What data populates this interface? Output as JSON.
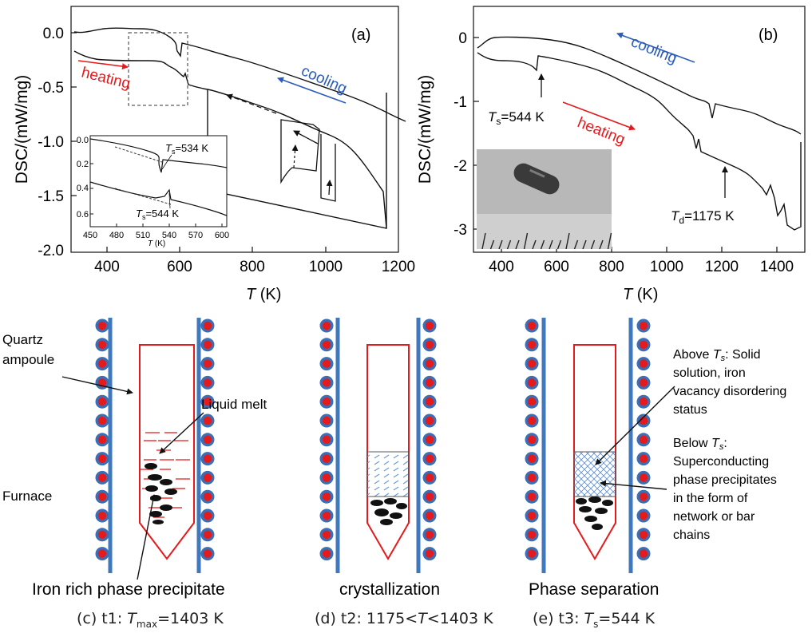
{
  "chart_data": [
    {
      "type": "line",
      "panel_label": "(a)",
      "xlabel": "T (K)",
      "ylabel": "DSC/(mW/mg)",
      "xlim": [
        300,
        1200
      ],
      "ylim": [
        -2.0,
        0.1
      ],
      "x_ticks": [
        "400",
        "600",
        "800",
        "1000",
        "1200"
      ],
      "y_ticks": [
        "0.0",
        "-0.5",
        "-1.0",
        "-1.5",
        "-2.0"
      ],
      "annotations": [
        "heating",
        "cooling"
      ],
      "series": [
        {
          "name": "cooling",
          "x": [
            310,
            330,
            360,
            400,
            450,
            490,
            520,
            530,
            545,
            560,
            600,
            700,
            800,
            900,
            1000,
            1080,
            1120
          ],
          "y": [
            -0.02,
            0.0,
            0.02,
            0.02,
            0.01,
            -0.03,
            -0.1,
            -0.32,
            -0.13,
            -0.15,
            -0.2,
            -0.4,
            -0.6,
            -0.8,
            -1.0,
            -1.14,
            -1.22
          ]
        },
        {
          "name": "heating",
          "x": [
            310,
            320,
            350,
            400,
            450,
            500,
            530,
            545,
            560,
            600,
            660,
            700,
            800,
            900,
            1000,
            1080,
            1110,
            1125
          ],
          "y": [
            -0.15,
            -0.26,
            -0.28,
            -0.3,
            -0.31,
            -0.38,
            -0.44,
            -0.38,
            -0.56,
            -0.62,
            -0.75,
            -0.82,
            -1.0,
            -1.18,
            -1.37,
            -1.53,
            -1.62,
            -1.8
          ]
        }
      ],
      "inset": {
        "xlabel": "T (K)",
        "xlim": [
          450,
          610
        ],
        "ylim": [
          -0.7,
          0.0
        ],
        "x_ticks": [
          "450",
          "480",
          "510",
          "540",
          "570",
          "600"
        ],
        "y_ticks": [
          "0.0",
          "0.2",
          "0.4",
          "0.6"
        ],
        "labels": {
          "ts_cool": "T_s=534 K",
          "ts_heat": "T_s=544 K"
        }
      }
    },
    {
      "type": "line",
      "panel_label": "(b)",
      "xlabel": "T (K)",
      "ylabel": "DSC/(mW/mg)",
      "xlim": [
        300,
        1500
      ],
      "ylim": [
        -3.1,
        0.3
      ],
      "x_ticks": [
        "400",
        "600",
        "800",
        "1000",
        "1200",
        "1400"
      ],
      "y_ticks": [
        "0",
        "-1",
        "-2",
        "-3"
      ],
      "annotations": [
        "cooling",
        "heating",
        "T_s=544 K",
        "T_d=1175 K"
      ],
      "series": [
        {
          "name": "cooling",
          "x": [
            320,
            360,
            400,
            500,
            600,
            700,
            800,
            900,
            940,
            950,
            1000,
            1100,
            1200,
            1300,
            1400,
            1460
          ],
          "y": [
            -0.1,
            0.0,
            0.0,
            -0.05,
            -0.15,
            -0.35,
            -0.6,
            -0.85,
            -0.95,
            -1.2,
            -1.05,
            -1.25,
            -1.5,
            -1.65,
            -1.75,
            -1.85
          ]
        },
        {
          "name": "heating",
          "x": [
            310,
            350,
            400,
            500,
            540,
            545,
            560,
            600,
            670,
            680,
            700,
            800,
            900,
            1000,
            1100,
            1170,
            1175,
            1180,
            1250,
            1300,
            1400,
            1440,
            1460,
            1475
          ],
          "y": [
            -0.35,
            -0.4,
            -0.42,
            -0.45,
            -0.42,
            -0.58,
            -0.65,
            -0.7,
            -0.82,
            -0.62,
            -0.66,
            -0.8,
            -1.1,
            -1.4,
            -1.6,
            -1.8,
            -1.6,
            -1.9,
            -2.05,
            -2.15,
            -2.5,
            -2.6,
            -2.85,
            -2.9
          ]
        }
      ]
    }
  ],
  "schematic": {
    "labels": {
      "quartz": [
        "Quartz",
        "ampoule"
      ],
      "liquid": "Liquid melt",
      "furnace": "Furnace",
      "above": [
        "Above T_s: Solid",
        "solution, iron",
        "vacancy disordering",
        "status"
      ],
      "below": [
        "Below T_s:",
        "Superconducting",
        "phase precipitates",
        "in the form of",
        "network or bar",
        "chains"
      ]
    },
    "stages": [
      {
        "title": "Iron rich phase precipitate",
        "caption": "(c) t1: T_max=1403 K"
      },
      {
        "title": "crystallization",
        "caption": "(d) t2: 1175<T<1403 K"
      },
      {
        "title": "Phase separation",
        "caption": "(e) t3: T_s=544 K"
      }
    ]
  }
}
